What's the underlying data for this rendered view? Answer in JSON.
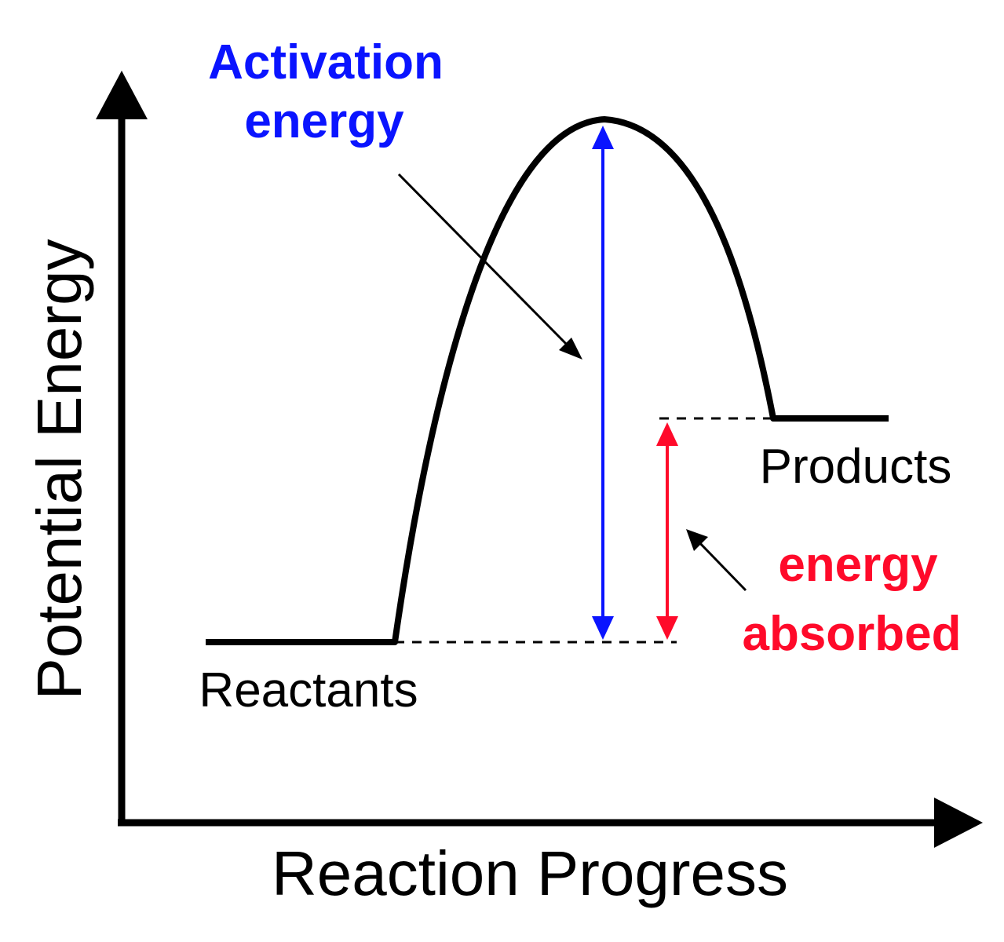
{
  "labels": {
    "activation_line1": "Activation",
    "activation_line2": "energy",
    "absorbed_line1": "energy",
    "absorbed_line2": "absorbed",
    "products": "Products",
    "reactants": "Reactants",
    "x_axis": "Reaction Progress",
    "y_axis": "Potential Energy"
  },
  "colors": {
    "curve": "#000000",
    "activation": "#0a14ff",
    "absorbed": "#ff0a2a",
    "axis": "#000000",
    "dashed": "#000000"
  }
}
